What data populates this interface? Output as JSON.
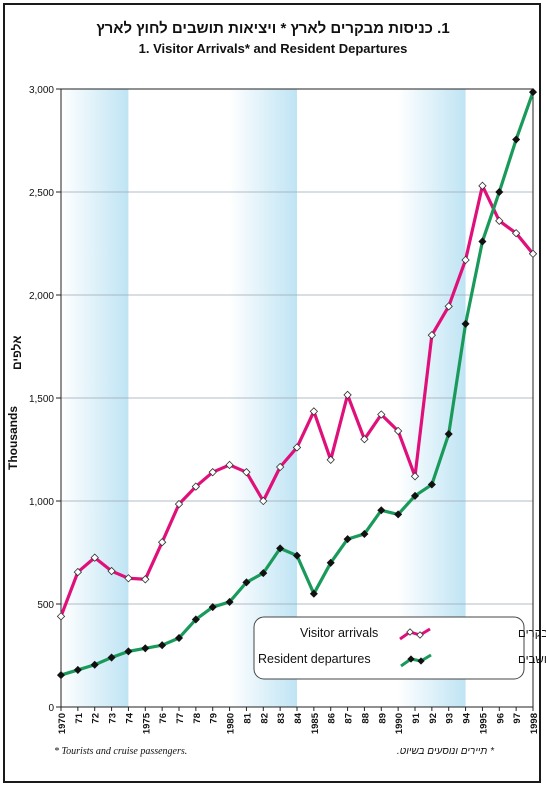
{
  "title_he": "1. כניסות מבקרים לארץ * ויציאות תושבים לחוץ לארץ",
  "title_en": "1. Visitor Arrivals* and Resident Departures",
  "ylabel_en": "Thousands",
  "ylabel_he": "אלפים",
  "footnote_en": "* Tourists and cruise passengers.",
  "footnote_he": "* תיירים ונוסעים בשיוט.",
  "colors": {
    "arrivals": "#e0107a",
    "departures": "#1a9a5a",
    "band": "#bfe4f4",
    "grid": "#9aa7b3"
  },
  "chart_data": {
    "type": "line",
    "title": "1. Visitor Arrivals* and Resident Departures",
    "ylabel": "Thousands",
    "ylim": [
      0,
      3000
    ],
    "yticks": [
      0,
      500,
      1000,
      1500,
      2000,
      2500,
      3000
    ],
    "ytick_labels": [
      "0",
      "500",
      "1,000",
      "1,500",
      "2,000",
      "2,500",
      "3,000"
    ],
    "x": [
      "1970",
      "71",
      "72",
      "73",
      "74",
      "1975",
      "76",
      "77",
      "78",
      "79",
      "1980",
      "81",
      "82",
      "83",
      "84",
      "1985",
      "86",
      "87",
      "88",
      "89",
      "1990",
      "91",
      "92",
      "93",
      "94",
      "1995",
      "96",
      "97",
      "1998"
    ],
    "grid": true,
    "legend_position": "bottom-right",
    "series": [
      {
        "name": "Visitor arrivals",
        "name_he": "כניסות מבקרים",
        "values": [
          440,
          655,
          725,
          660,
          625,
          620,
          800,
          985,
          1070,
          1140,
          1175,
          1140,
          1000,
          1165,
          1260,
          1435,
          1200,
          1515,
          1300,
          1420,
          1340,
          1120,
          1805,
          1945,
          2170,
          2530,
          2360,
          2300,
          2200
        ]
      },
      {
        "name": "Resident departures",
        "name_he": "יציאות תושבים",
        "values": [
          155,
          180,
          205,
          240,
          270,
          285,
          300,
          335,
          425,
          485,
          510,
          605,
          650,
          770,
          735,
          550,
          700,
          815,
          840,
          955,
          935,
          1025,
          1080,
          1325,
          1860,
          2260,
          2500,
          2755,
          2985
        ]
      }
    ]
  }
}
